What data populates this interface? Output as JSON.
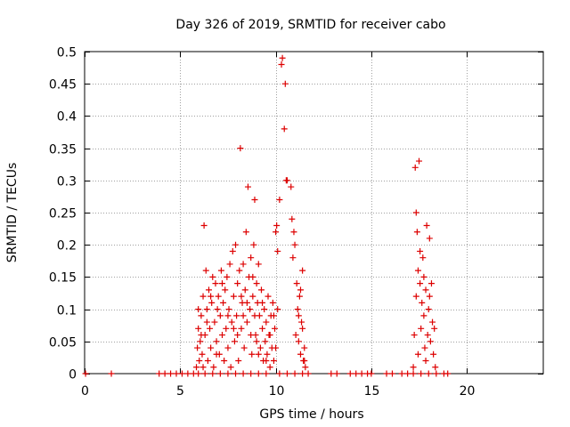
{
  "chart_data": {
    "type": "scatter",
    "title": "Day 326 of 2019, SRMTID for receiver cabo",
    "xlabel": "GPS time / hours",
    "ylabel": "SRMTID / TECUs",
    "xlim": [
      0,
      24
    ],
    "ylim": [
      0,
      0.5
    ],
    "xticks": [
      0,
      5,
      10,
      15,
      20
    ],
    "yticks": [
      0,
      0.05,
      0.1,
      0.15,
      0.2,
      0.25,
      0.3,
      0.35,
      0.4,
      0.45,
      0.5
    ],
    "ytick_labels": [
      "0",
      "0.05",
      "0.1",
      "0.15",
      "0.2",
      "0.25",
      "0.3",
      "0.35",
      "0.4",
      "0.45",
      "0.5"
    ],
    "grid": true,
    "marker": "+",
    "color": "#dd0000",
    "series": [
      {
        "name": "SRMTID",
        "points": [
          [
            0.05,
            0
          ],
          [
            1.4,
            0
          ],
          [
            3.9,
            0
          ],
          [
            4.2,
            0
          ],
          [
            4.5,
            0
          ],
          [
            4.8,
            0
          ],
          [
            5.1,
            0
          ],
          [
            5.4,
            0
          ],
          [
            5.7,
            0
          ],
          [
            5.95,
            0
          ],
          [
            6.3,
            0
          ],
          [
            6.7,
            0
          ],
          [
            7.1,
            0
          ],
          [
            7.5,
            0
          ],
          [
            7.9,
            0
          ],
          [
            8.3,
            0
          ],
          [
            8.7,
            0
          ],
          [
            9.1,
            0
          ],
          [
            9.5,
            0
          ],
          [
            10.2,
            0
          ],
          [
            10.6,
            0
          ],
          [
            11.0,
            0
          ],
          [
            11.4,
            0
          ],
          [
            11.7,
            0
          ],
          [
            12.9,
            0
          ],
          [
            13.2,
            0
          ],
          [
            13.9,
            0
          ],
          [
            14.2,
            0
          ],
          [
            14.5,
            0
          ],
          [
            14.8,
            0
          ],
          [
            15.0,
            0
          ],
          [
            15.8,
            0
          ],
          [
            16.1,
            0
          ],
          [
            16.6,
            0
          ],
          [
            16.9,
            0
          ],
          [
            17.2,
            0
          ],
          [
            17.6,
            0
          ],
          [
            18.0,
            0
          ],
          [
            18.4,
            0
          ],
          [
            18.8,
            0
          ],
          [
            19.0,
            0
          ],
          [
            5.85,
            0.01
          ],
          [
            5.9,
            0.04
          ],
          [
            5.95,
            0.07
          ],
          [
            6.0,
            0.02
          ],
          [
            6.05,
            0.05
          ],
          [
            6.1,
            0.09
          ],
          [
            6.15,
            0.03
          ],
          [
            6.2,
            0.12
          ],
          [
            6.25,
            0.23
          ],
          [
            6.3,
            0.06
          ],
          [
            6.35,
            0.16
          ],
          [
            6.4,
            0.1
          ],
          [
            6.45,
            0.02
          ],
          [
            6.5,
            0.13
          ],
          [
            6.55,
            0.07
          ],
          [
            6.6,
            0.04
          ],
          [
            6.65,
            0.11
          ],
          [
            6.7,
            0.15
          ],
          [
            6.75,
            0.01
          ],
          [
            6.8,
            0.08
          ],
          [
            6.85,
            0.14
          ],
          [
            6.9,
            0.05
          ],
          [
            6.95,
            0.1
          ],
          [
            7.0,
            0.12
          ],
          [
            7.05,
            0.03
          ],
          [
            7.1,
            0.09
          ],
          [
            7.15,
            0.16
          ],
          [
            7.2,
            0.06
          ],
          [
            7.25,
            0.11
          ],
          [
            7.3,
            0.02
          ],
          [
            7.35,
            0.13
          ],
          [
            7.4,
            0.07
          ],
          [
            7.45,
            0.15
          ],
          [
            7.5,
            0.04
          ],
          [
            7.55,
            0.1
          ],
          [
            7.6,
            0.17
          ],
          [
            7.65,
            0.01
          ],
          [
            7.7,
            0.08
          ],
          [
            7.75,
            0.19
          ],
          [
            7.8,
            0.12
          ],
          [
            7.85,
            0.05
          ],
          [
            7.9,
            0.2
          ],
          [
            7.95,
            0.09
          ],
          [
            8.0,
            0.14
          ],
          [
            8.05,
            0.02
          ],
          [
            8.1,
            0.16
          ],
          [
            8.15,
            0.35
          ],
          [
            8.2,
            0.07
          ],
          [
            8.25,
            0.11
          ],
          [
            8.3,
            0.17
          ],
          [
            8.35,
            0.04
          ],
          [
            8.4,
            0.13
          ],
          [
            8.45,
            0.22
          ],
          [
            8.5,
            0.08
          ],
          [
            8.55,
            0.29
          ],
          [
            8.6,
            0.15
          ],
          [
            8.65,
            0.1
          ],
          [
            8.7,
            0.18
          ],
          [
            8.75,
            0.03
          ],
          [
            8.8,
            0.12
          ],
          [
            8.85,
            0.2
          ],
          [
            8.9,
            0.27
          ],
          [
            8.95,
            0.06
          ],
          [
            9.0,
            0.14
          ],
          [
            9.05,
            0.11
          ],
          [
            9.1,
            0.17
          ],
          [
            9.15,
            0.09
          ],
          [
            9.2,
            0.04
          ],
          [
            9.25,
            0.13
          ],
          [
            9.3,
            0.07
          ],
          [
            9.35,
            0.02
          ],
          [
            9.4,
            0.1
          ],
          [
            9.45,
            0.05
          ],
          [
            9.5,
            0.08
          ],
          [
            9.55,
            0.03
          ],
          [
            9.6,
            0.12
          ],
          [
            9.65,
            0.06
          ],
          [
            9.7,
            0.01
          ],
          [
            9.75,
            0.09
          ],
          [
            9.8,
            0.04
          ],
          [
            9.85,
            0.11
          ],
          [
            9.9,
            0.02
          ],
          [
            9.95,
            0.07
          ],
          [
            10.0,
            0.22
          ],
          [
            10.05,
            0.23
          ],
          [
            10.1,
            0.19
          ],
          [
            10.2,
            0.27
          ],
          [
            10.3,
            0.48
          ],
          [
            10.35,
            0.49
          ],
          [
            10.45,
            0.38
          ],
          [
            10.5,
            0.45
          ],
          [
            10.55,
            0.3
          ],
          [
            10.6,
            0.3
          ],
          [
            10.8,
            0.29
          ],
          [
            10.85,
            0.24
          ],
          [
            10.9,
            0.18
          ],
          [
            10.95,
            0.22
          ],
          [
            11.0,
            0.2
          ],
          [
            11.05,
            0.06
          ],
          [
            11.1,
            0.14
          ],
          [
            11.15,
            0.1
          ],
          [
            11.2,
            0.05
          ],
          [
            11.25,
            0.12
          ],
          [
            11.3,
            0.03
          ],
          [
            11.35,
            0.08
          ],
          [
            11.4,
            0.16
          ],
          [
            11.45,
            0.02
          ],
          [
            11.5,
            0.04
          ],
          [
            11.55,
            0.01
          ],
          [
            5.95,
            0.1
          ],
          [
            6.1,
            0.06
          ],
          [
            6.2,
            0.01
          ],
          [
            6.4,
            0.08
          ],
          [
            6.6,
            0.12
          ],
          [
            6.9,
            0.03
          ],
          [
            7.2,
            0.14
          ],
          [
            7.5,
            0.09
          ],
          [
            7.8,
            0.07
          ],
          [
            8.0,
            0.06
          ],
          [
            8.2,
            0.12
          ],
          [
            8.3,
            0.09
          ],
          [
            8.5,
            0.11
          ],
          [
            8.7,
            0.06
          ],
          [
            8.8,
            0.15
          ],
          [
            8.9,
            0.09
          ],
          [
            9.0,
            0.05
          ],
          [
            9.1,
            0.03
          ],
          [
            9.3,
            0.11
          ],
          [
            9.5,
            0.02
          ],
          [
            9.7,
            0.06
          ],
          [
            9.9,
            0.09
          ],
          [
            10.0,
            0.04
          ],
          [
            10.1,
            0.1
          ],
          [
            11.2,
            0.09
          ],
          [
            11.3,
            0.13
          ],
          [
            11.4,
            0.07
          ],
          [
            11.5,
            0.02
          ],
          [
            17.2,
            0.01
          ],
          [
            17.25,
            0.06
          ],
          [
            17.3,
            0.32
          ],
          [
            17.35,
            0.25
          ],
          [
            17.4,
            0.22
          ],
          [
            17.45,
            0.16
          ],
          [
            17.5,
            0.33
          ],
          [
            17.55,
            0.14
          ],
          [
            17.6,
            0.07
          ],
          [
            17.65,
            0.11
          ],
          [
            17.7,
            0.18
          ],
          [
            17.75,
            0.09
          ],
          [
            17.8,
            0.04
          ],
          [
            17.85,
            0.13
          ],
          [
            17.9,
            0.23
          ],
          [
            17.95,
            0.06
          ],
          [
            18.0,
            0.1
          ],
          [
            18.05,
            0.21
          ],
          [
            18.1,
            0.05
          ],
          [
            18.15,
            0.14
          ],
          [
            18.2,
            0.08
          ],
          [
            18.25,
            0.03
          ],
          [
            18.3,
            0.07
          ],
          [
            18.35,
            0.01
          ],
          [
            17.35,
            0.12
          ],
          [
            17.45,
            0.03
          ],
          [
            17.55,
            0.19
          ],
          [
            17.75,
            0.15
          ],
          [
            17.85,
            0.02
          ],
          [
            18.05,
            0.12
          ]
        ]
      }
    ]
  }
}
